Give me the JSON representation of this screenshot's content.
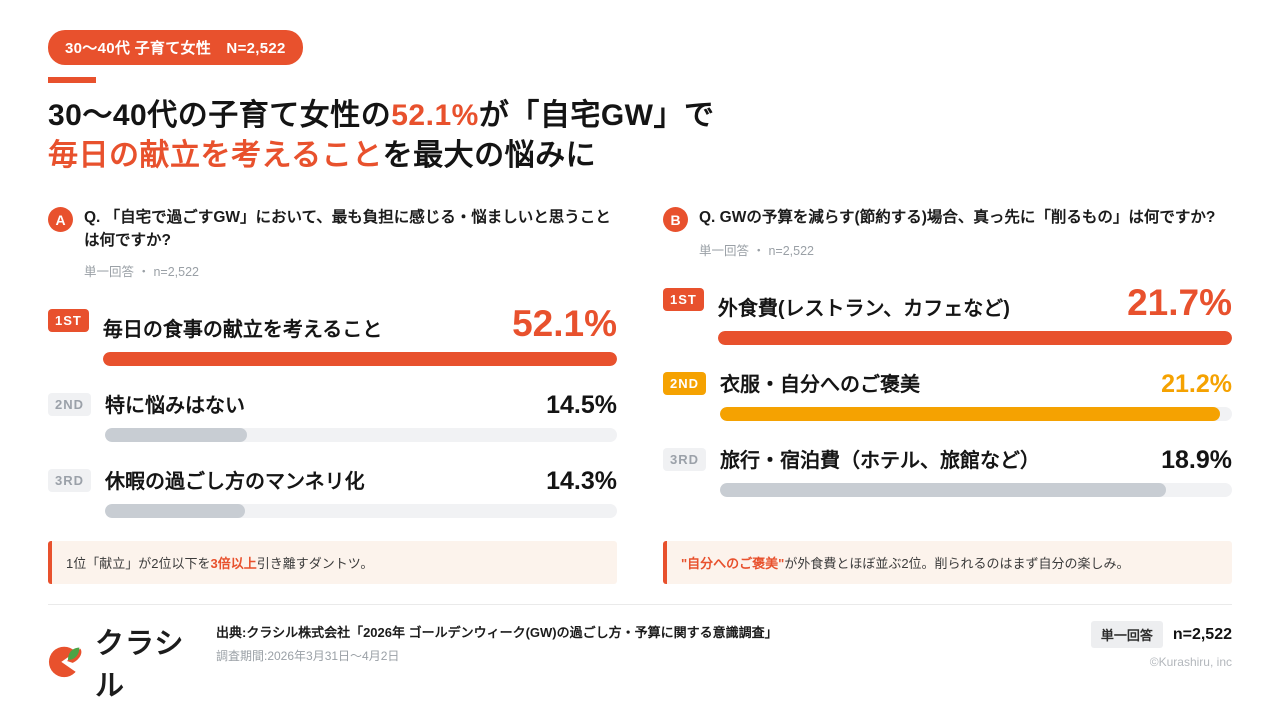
{
  "header": {
    "badge": "30〜40代 子育て女性　N=2,522",
    "title": {
      "line1_pre": "30〜40代の子育て女性の",
      "line1_highlight": "52.1%",
      "line1_post": "が「自宅GW」で",
      "line2_highlight": "毎日の献立を考えること",
      "line2_post": "を最大の悩みに"
    }
  },
  "colors": {
    "primary": "#E8512D",
    "amber": "#F5A201",
    "grey_bar": "#C8CDD3",
    "bar_track": "#F1F2F4",
    "callout_bg": "#FCF3EC",
    "leaf_green": "#4CA345"
  },
  "panels": [
    {
      "id": "A",
      "question": "Q. 「自宅で過ごすGW」において、最も負担に感じる・悩ましいと思うことは何ですか?",
      "note": "単一回答 ・ n=2,522",
      "items": [
        {
          "rank": "1ST",
          "label": "毎日の食事の献立を考えること",
          "value": "52.1%",
          "pct": 100
        },
        {
          "rank": "2ND",
          "label": "特に悩みはない",
          "value": "14.5%",
          "pct": 27.8
        },
        {
          "rank": "3RD",
          "label": "休暇の過ごし方のマンネリ化",
          "value": "14.3%",
          "pct": 27.4
        }
      ],
      "callout": {
        "pre": "1位「献立」が2位以下を",
        "highlight": "3倍以上",
        "post": "引き離すダントツ。"
      }
    },
    {
      "id": "B",
      "question": "Q. GWの予算を減らす(節約する)場合、真っ先に「削るもの」は何ですか?",
      "note": "単一回答 ・ n=2,522",
      "items": [
        {
          "rank": "1ST",
          "label": "外食費(レストラン、カフェなど)",
          "value": "21.7%",
          "pct": 100
        },
        {
          "rank": "2ND",
          "label": "衣服・自分へのご褒美",
          "value": "21.2%",
          "pct": 97.7
        },
        {
          "rank": "3RD",
          "label": "旅行・宿泊費（ホテル、旅館など）",
          "value": "18.9%",
          "pct": 87.1
        }
      ],
      "callout": {
        "pre": "",
        "highlight": "\"自分へのご褒美\"",
        "post": "が外食費とほぼ並ぶ2位。削られるのはまず自分の楽しみ。"
      }
    }
  ],
  "footer": {
    "logo_text": "クラシル",
    "source_line1": "出典:クラシル株式会社「2026年 ゴールデンウィーク(GW)の過ごし方・予算に関する意識調査」",
    "source_line2": "調査期間:2026年3月31日〜4月2日",
    "answer_tag": "単一回答",
    "sample": "n=2,522",
    "copyright": "©Kurashiru, inc"
  },
  "chart_data": [
    {
      "type": "bar",
      "title": "Q. 「自宅で過ごすGW」において、最も負担に感じる・悩ましいと思うことは何ですか?",
      "subtitle": "単一回答 ・ n=2,522",
      "categories": [
        "毎日の食事の献立を考えること",
        "特に悩みはない",
        "休暇の過ごし方のマンネリ化"
      ],
      "values": [
        52.1,
        14.5,
        14.3
      ],
      "unit": "%",
      "xlabel": "",
      "ylabel": "",
      "orientation": "horizontal",
      "bar_scale": "relative to max value (52.1% = full width)"
    },
    {
      "type": "bar",
      "title": "Q. GWの予算を減らす(節約する)場合、真っ先に「削るもの」は何ですか?",
      "subtitle": "単一回答 ・ n=2,522",
      "categories": [
        "外食費(レストラン、カフェなど)",
        "衣服・自分へのご褒美",
        "旅行・宿泊費（ホテル、旅館など）"
      ],
      "values": [
        21.7,
        21.2,
        18.9
      ],
      "unit": "%",
      "xlabel": "",
      "ylabel": "",
      "orientation": "horizontal",
      "bar_scale": "relative to max value (21.7% = full width)"
    }
  ]
}
